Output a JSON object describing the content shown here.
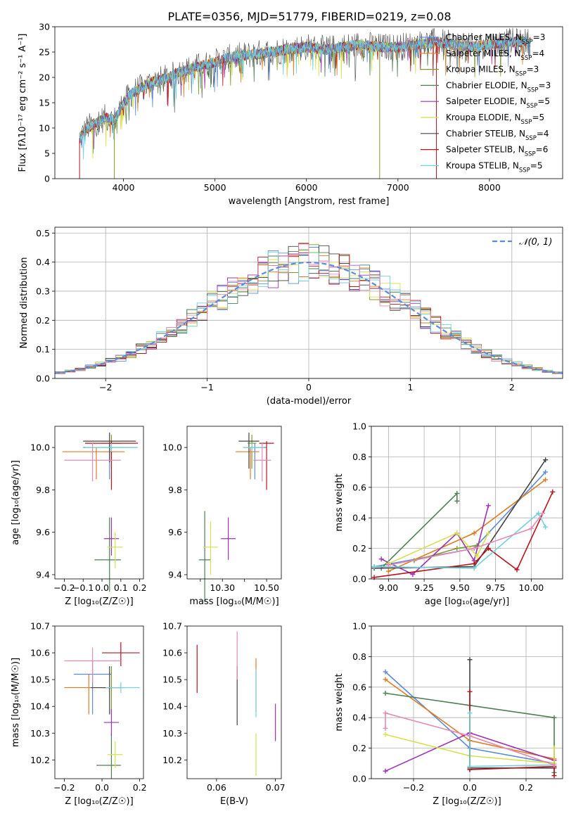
{
  "figure_title": "PLATE=0356, MJD=51779, FIBERID=0219, z=0.08",
  "colors": {
    "Chabrier MILES": "#5b8bd9",
    "Salpeter MILES": "#e07b22",
    "Kroupa MILES": "#7f9a2a",
    "Chabrier ELODIE": "#4e7f55",
    "Salpeter ELODIE": "#9b35b3",
    "Kroupa ELODIE": "#d7e04a",
    "Chabrier STELIB": "#444444",
    "Salpeter STELIB": "#b8141c",
    "Kroupa STELIB": "#6fd3dc",
    "pink": "#e58ab3",
    "gauss": "#5b8bd9"
  },
  "chart_data": [
    {
      "type": "line",
      "title": "PLATE=0356, MJD=51779, FIBERID=0219, z=0.08",
      "xlabel": "wavelength [Angstrom, rest frame]",
      "ylabel": "Flux [fλ10⁻¹⁷ erg cm⁻² s⁻¹ A⁻¹]",
      "xlim": [
        3250,
        8800
      ],
      "ylim": [
        0,
        30
      ],
      "xticks": [
        4000,
        5000,
        6000,
        7000,
        8000
      ],
      "yticks": [
        0,
        5,
        10,
        15,
        20,
        25,
        30
      ],
      "grid": false,
      "legend_position": "right",
      "legend": [
        {
          "base": "Chabrier MILES, N",
          "sub": "SSP",
          "val": "=3"
        },
        {
          "base": "Salpeter MILES, N",
          "sub": "SSP",
          "val": "=4"
        },
        {
          "base": "Kroupa MILES, N",
          "sub": "SSP",
          "val": "=3"
        },
        {
          "base": "Chabrier ELODIE, N",
          "sub": "SSP",
          "val": "=3"
        },
        {
          "base": "Salpeter ELODIE, N",
          "sub": "SSP",
          "val": "=5"
        },
        {
          "base": "Kroupa ELODIE, N",
          "sub": "SSP",
          "val": "=5"
        },
        {
          "base": "Chabrier STELIB, N",
          "sub": "SSP",
          "val": "=4"
        },
        {
          "base": "Salpeter STELIB, N",
          "sub": "SSP",
          "val": "=6"
        },
        {
          "base": "Kroupa STELIB, N",
          "sub": "SSP",
          "val": "=5"
        }
      ],
      "spectrum": {
        "x": [
          3520,
          3600,
          3700,
          3800,
          3900,
          4000,
          4100,
          4200,
          4300,
          4400,
          4500,
          4600,
          4800,
          5000,
          5200,
          5400,
          5600,
          5800,
          6000,
          6200,
          6400,
          6600,
          6800,
          7000,
          7200,
          7400,
          7600,
          7800,
          8000,
          8200,
          8400
        ],
        "y": [
          8,
          10,
          11,
          12,
          11.5,
          15,
          17,
          18,
          19,
          19.5,
          20,
          21,
          22,
          23,
          24,
          24.5,
          25,
          25.5,
          26,
          25.5,
          26,
          26.5,
          26,
          26,
          26.5,
          27,
          26.5,
          26,
          26.5,
          27,
          27
        ]
      }
    },
    {
      "type": "bar",
      "xlabel": "(data-model)/error",
      "ylabel": "Normed distribution",
      "xlim": [
        -2.5,
        2.5
      ],
      "ylim": [
        0,
        0.52
      ],
      "xticks": [
        -2,
        -1,
        0,
        1,
        2
      ],
      "yticks": [
        0.0,
        0.1,
        0.2,
        0.3,
        0.4,
        0.5
      ],
      "grid": true,
      "legend_position": "top-right",
      "legend": "𝒩(0, 1)",
      "gaussian": {
        "mean": 0,
        "sigma": 1
      },
      "bin_width": 0.1
    },
    {
      "type": "scatter",
      "xlabel": "Z [log₁₀(Z/Z☉)]",
      "ylabel": "age  [log₁₀(age/yr)]",
      "xlim": [
        -0.25,
        0.22
      ],
      "ylim": [
        9.38,
        10.1
      ],
      "xticks": [
        -0.2,
        -0.1,
        0.0,
        0.1,
        0.2
      ],
      "yticks": [
        9.4,
        9.6,
        9.8,
        10.0
      ],
      "grid": false,
      "points": [
        {
          "x": 0.04,
          "y": 10.0,
          "xerr": [
            0.14,
            0.14
          ],
          "yerr": [
            0.15,
            0.02
          ],
          "c": "Chabrier MILES"
        },
        {
          "x": -0.03,
          "y": 9.98,
          "xerr": [
            0.18,
            0.15
          ],
          "yerr": [
            0.13,
            0.02
          ],
          "c": "Salpeter MILES"
        },
        {
          "x": 0.05,
          "y": 10.02,
          "xerr": [
            0.05,
            0.05
          ],
          "yerr": [
            0.12,
            0.04
          ],
          "c": "Kroupa MILES"
        },
        {
          "x": 0.04,
          "y": 9.47,
          "xerr": [
            0.08,
            0.06
          ],
          "yerr": [
            0.15,
            0.2
          ],
          "c": "Chabrier ELODIE"
        },
        {
          "x": 0.05,
          "y": 9.57,
          "xerr": [
            0.04,
            0.04
          ],
          "yerr": [
            0.08,
            0.1
          ],
          "c": "Salpeter ELODIE"
        },
        {
          "x": 0.07,
          "y": 9.53,
          "xerr": [
            0.04,
            0.04
          ],
          "yerr": [
            0.1,
            0.07
          ],
          "c": "Kroupa ELODIE"
        },
        {
          "x": 0.04,
          "y": 10.03,
          "xerr": [
            0.14,
            0.14
          ],
          "yerr": [
            0.1,
            0.04
          ],
          "c": "Chabrier STELIB"
        },
        {
          "x": 0.05,
          "y": 10.02,
          "xerr": [
            0.14,
            0.14
          ],
          "yerr": [
            0.22,
            0.01
          ],
          "c": "Salpeter STELIB"
        },
        {
          "x": 0.05,
          "y": 10.0,
          "xerr": [
            0.14,
            0.14
          ],
          "yerr": [
            0.02,
            0.02
          ],
          "c": "Kroupa STELIB"
        },
        {
          "x": -0.05,
          "y": 9.94,
          "xerr": [
            0.15,
            0.15
          ],
          "yerr": [
            0.1,
            0.08
          ],
          "c": "pink"
        }
      ]
    },
    {
      "type": "scatter",
      "xlabel": "mass [log₁₀(M/M☉)]",
      "xlim": [
        10.06,
        10.7
      ],
      "ylim": [
        9.38,
        10.1
      ],
      "xticks": [
        10.15,
        10.3,
        10.45,
        10.6
      ],
      "xticklabels": [
        "",
        "10.30",
        "",
        "10.50"
      ],
      "yticks": [
        9.4,
        9.6,
        9.8,
        10.0
      ],
      "grid": false,
      "points": [
        {
          "x": 10.52,
          "y": 10.0,
          "xerr": [
            0.08,
            0.08
          ],
          "yerr": [
            0.15,
            0.02
          ],
          "c": "Chabrier MILES"
        },
        {
          "x": 10.49,
          "y": 9.98,
          "xerr": [
            0.1,
            0.06
          ],
          "yerr": [
            0.13,
            0.02
          ],
          "c": "Salpeter MILES"
        },
        {
          "x": 10.5,
          "y": 10.02,
          "xerr": [
            0.03,
            0.03
          ],
          "yerr": [
            0.12,
            0.04
          ],
          "c": "Kroupa MILES"
        },
        {
          "x": 10.18,
          "y": 9.47,
          "xerr": [
            0.04,
            0.04
          ],
          "yerr": [
            0.2,
            0.23
          ],
          "c": "Chabrier ELODIE"
        },
        {
          "x": 10.34,
          "y": 9.57,
          "xerr": [
            0.05,
            0.05
          ],
          "yerr": [
            0.1,
            0.1
          ],
          "c": "Salpeter ELODIE"
        },
        {
          "x": 10.22,
          "y": 9.53,
          "xerr": [
            0.05,
            0.05
          ],
          "yerr": [
            0.13,
            0.12
          ],
          "c": "Kroupa ELODIE"
        },
        {
          "x": 10.48,
          "y": 10.03,
          "xerr": [
            0.07,
            0.07
          ],
          "yerr": [
            0.13,
            0.04
          ],
          "c": "Chabrier STELIB"
        },
        {
          "x": 10.6,
          "y": 10.02,
          "xerr": [
            0.05,
            0.05
          ],
          "yerr": [
            0.22,
            0.01
          ],
          "c": "Salpeter STELIB"
        },
        {
          "x": 10.5,
          "y": 10.0,
          "xerr": [
            0.06,
            0.08
          ],
          "yerr": [
            0.02,
            0.02
          ],
          "c": "Kroupa STELIB"
        },
        {
          "x": 10.57,
          "y": 9.94,
          "xerr": [
            0.06,
            0.06
          ],
          "yerr": [
            0.1,
            0.08
          ],
          "c": "pink"
        }
      ]
    },
    {
      "type": "line",
      "xlabel": "age  [log₁₀(age/yr)]",
      "ylabel": "mass weight",
      "xlim": [
        8.88,
        10.22
      ],
      "ylim": [
        0,
        1
      ],
      "xticks": [
        9.0,
        9.25,
        9.5,
        9.75,
        10.0
      ],
      "yticks": [
        0.0,
        0.2,
        0.4,
        0.6,
        0.8,
        1.0
      ],
      "grid": true,
      "series": [
        {
          "c": "Chabrier MILES",
          "x": [
            8.9,
            9.6,
            10.1
          ],
          "y": [
            0.08,
            0.2,
            0.7
          ]
        },
        {
          "c": "Salpeter MILES",
          "x": [
            9.0,
            9.6,
            10.1
          ],
          "y": [
            0.05,
            0.3,
            0.65
          ]
        },
        {
          "c": "Kroupa MILES",
          "x": [
            9.18,
            9.48,
            9.62
          ],
          "y": [
            0.12,
            0.2,
            0.22
          ]
        },
        {
          "c": "Chabrier ELODIE",
          "x": [
            8.95,
            9.48,
            9.48
          ],
          "y": [
            0.07,
            0.56,
            0.51
          ]
        },
        {
          "c": "Salpeter ELODIE",
          "x": [
            8.95,
            9.17,
            9.48,
            9.6,
            9.7
          ],
          "y": [
            0.13,
            0.03,
            0.3,
            0.12,
            0.48
          ]
        },
        {
          "c": "Kroupa ELODIE",
          "x": [
            9.0,
            9.48,
            9.62,
            9.7
          ],
          "y": [
            0.1,
            0.3,
            0.15,
            0.3
          ]
        },
        {
          "c": "Chabrier STELIB",
          "x": [
            8.9,
            9.6,
            10.1
          ],
          "y": [
            0.07,
            0.08,
            0.78
          ]
        },
        {
          "c": "Salpeter STELIB",
          "x": [
            8.9,
            9.6,
            9.7,
            9.9,
            10.15
          ],
          "y": [
            0.01,
            0.1,
            0.2,
            0.06,
            0.57
          ]
        },
        {
          "c": "Kroupa STELIB",
          "x": [
            8.9,
            9.6,
            10.05,
            10.1
          ],
          "y": [
            0.08,
            0.07,
            0.43,
            0.34
          ]
        },
        {
          "c": "pink",
          "x": [
            9.0,
            9.6,
            10.0,
            10.08
          ],
          "y": [
            0.09,
            0.2,
            0.33,
            0.43
          ]
        }
      ]
    },
    {
      "type": "scatter",
      "xlabel": "Z [log₁₀(Z/Z☉)]",
      "ylabel": "mass [log₁₀(M/M☉)]",
      "xlim": [
        -0.25,
        0.22
      ],
      "ylim": [
        10.13,
        10.7
      ],
      "xticks": [
        -0.2,
        0.0,
        0.2
      ],
      "yticks": [
        10.2,
        10.3,
        10.4,
        10.5,
        10.6,
        10.7
      ],
      "grid": false,
      "points": [
        {
          "x": -0.05,
          "y": 10.52,
          "xerr": [
            0.1,
            0.1
          ],
          "yerr": [
            0.15,
            0.05
          ],
          "c": "Chabrier MILES"
        },
        {
          "x": -0.07,
          "y": 10.47,
          "xerr": [
            0.13,
            0.13
          ],
          "yerr": [
            0.1,
            0.05
          ],
          "c": "Salpeter MILES"
        },
        {
          "x": 0.05,
          "y": 10.47,
          "xerr": [
            0.05,
            0.05
          ],
          "yerr": [
            0.1,
            0.08
          ],
          "c": "Kroupa MILES"
        },
        {
          "x": 0.05,
          "y": 10.18,
          "xerr": [
            0.08,
            0.05
          ],
          "yerr": [
            0.05,
            0.12
          ],
          "c": "Chabrier ELODIE"
        },
        {
          "x": 0.05,
          "y": 10.34,
          "xerr": [
            0.04,
            0.04
          ],
          "yerr": [
            0.05,
            0.05
          ],
          "c": "Salpeter ELODIE"
        },
        {
          "x": 0.07,
          "y": 10.22,
          "xerr": [
            0.04,
            0.04
          ],
          "yerr": [
            0.05,
            0.05
          ],
          "c": "Kroupa ELODIE"
        },
        {
          "x": 0.04,
          "y": 10.47,
          "xerr": [
            0.1,
            0.08
          ],
          "yerr": [
            0.1,
            0.08
          ],
          "c": "Chabrier STELIB"
        },
        {
          "x": 0.1,
          "y": 10.6,
          "xerr": [
            0.1,
            0.1
          ],
          "yerr": [
            0.05,
            0.04
          ],
          "c": "Salpeter STELIB"
        },
        {
          "x": 0.1,
          "y": 10.47,
          "xerr": [
            0.08,
            0.1
          ],
          "yerr": [
            0.02,
            0.02
          ],
          "c": "Kroupa STELIB"
        },
        {
          "x": -0.05,
          "y": 10.57,
          "xerr": [
            0.15,
            0.15
          ],
          "yerr": [
            0.08,
            0.05
          ],
          "c": "pink"
        }
      ]
    },
    {
      "type": "scatter",
      "xlabel": "E(B-V)",
      "xlim": [
        0.055,
        0.071
      ],
      "ylim": [
        10.13,
        10.7
      ],
      "xticks": [
        0.06,
        0.07
      ],
      "xticklabels": [
        "0.06",
        "0.07"
      ],
      "yticks": [
        10.2,
        10.3,
        10.4,
        10.5,
        10.6,
        10.7
      ],
      "grid": false,
      "points": [
        {
          "x": 0.0567,
          "y": 10.54,
          "yerr": [
            0.09,
            0.09
          ],
          "c": "Salpeter STELIB"
        },
        {
          "x": 0.0635,
          "y": 10.44,
          "yerr": [
            0.11,
            0.11
          ],
          "c": "Chabrier STELIB"
        },
        {
          "x": 0.0635,
          "y": 10.58,
          "yerr": [
            0.08,
            0.1
          ],
          "c": "pink"
        },
        {
          "x": 0.0667,
          "y": 10.48,
          "yerr": [
            0.1,
            0.1
          ],
          "c": "Salpeter MILES"
        },
        {
          "x": 0.0667,
          "y": 10.45,
          "yerr": [
            0.09,
            0.09
          ],
          "c": "Kroupa STELIB"
        },
        {
          "x": 0.0667,
          "y": 10.22,
          "yerr": [
            0.08,
            0.08
          ],
          "c": "Kroupa ELODIE"
        },
        {
          "x": 0.07,
          "y": 10.34,
          "yerr": [
            0.07,
            0.07
          ],
          "c": "Salpeter ELODIE"
        }
      ]
    },
    {
      "type": "line",
      "xlabel": "Z [log₁₀(Z/Z☉)]",
      "ylabel": "mass weight",
      "xlim": [
        -0.35,
        0.33
      ],
      "ylim": [
        0,
        1
      ],
      "xticks": [
        -0.2,
        0.0,
        0.2
      ],
      "yticks": [
        0.0,
        0.2,
        0.4,
        0.6,
        0.8,
        1.0
      ],
      "grid": true,
      "series": [
        {
          "c": "Chabrier MILES",
          "x": [
            -0.3,
            0.0,
            0.3
          ],
          "y": [
            0.7,
            0.2,
            0.1
          ]
        },
        {
          "c": "Salpeter MILES",
          "x": [
            -0.3,
            0.0,
            0.3
          ],
          "y": [
            0.65,
            0.25,
            0.13
          ]
        },
        {
          "c": "Chabrier ELODIE",
          "x": [
            -0.3,
            0.0,
            0.3,
            0.3
          ],
          "y": [
            0.56,
            0.48,
            0.4,
            0.04
          ]
        },
        {
          "c": "Salpeter ELODIE",
          "x": [
            -0.3,
            0.0,
            0.3
          ],
          "y": [
            0.05,
            0.3,
            0.12
          ]
        },
        {
          "c": "Kroupa ELODIE",
          "x": [
            -0.3,
            0.0,
            0.3,
            0.3
          ],
          "y": [
            0.29,
            0.15,
            0.1,
            0.2
          ]
        },
        {
          "c": "Chabrier STELIB",
          "x": [
            0.0,
            0.0,
            0.0,
            0.3
          ],
          "y": [
            0.78,
            0.06,
            0.07,
            0.07
          ]
        },
        {
          "c": "Salpeter STELIB",
          "x": [
            0.0,
            0.0,
            0.3,
            0.3
          ],
          "y": [
            0.57,
            0.06,
            0.08,
            0.02
          ]
        },
        {
          "c": "Kroupa STELIB",
          "x": [
            0.0,
            0.0,
            0.3
          ],
          "y": [
            0.43,
            0.08,
            0.09
          ]
        },
        {
          "c": "pink",
          "x": [
            -0.3,
            -0.3,
            0.0,
            0.3
          ],
          "y": [
            0.33,
            0.43,
            0.28,
            0.09
          ]
        }
      ]
    }
  ]
}
